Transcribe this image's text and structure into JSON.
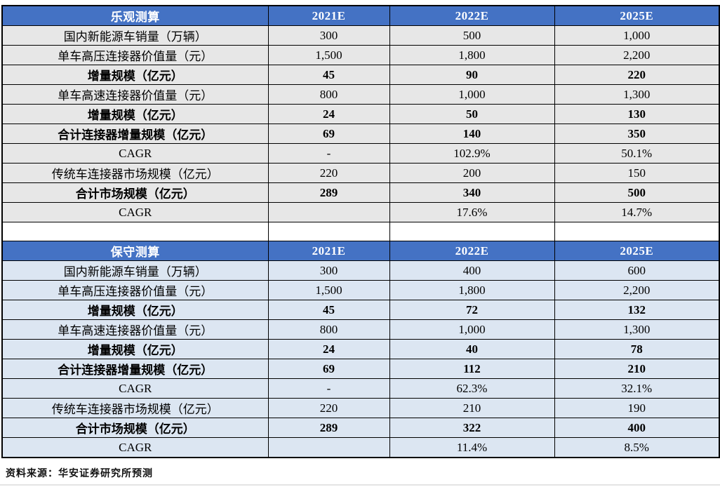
{
  "colors": {
    "header_bg": "#4472C4",
    "header_text": "#ffffff",
    "optimistic_row_bg": "#E7E7E7",
    "conservative_row_bg": "#DCE6F2",
    "border": "#000000"
  },
  "tables": [
    {
      "title": "乐观测算",
      "columns": [
        "2021E",
        "2022E",
        "2025E"
      ],
      "row_bg": "#E7E7E7",
      "rows": [
        {
          "label": "国内新能源车销量（万辆）",
          "values": [
            "300",
            "500",
            "1,000"
          ],
          "bold": false
        },
        {
          "label": "单车高压连接器价值量（元）",
          "values": [
            "1,500",
            "1,800",
            "2,200"
          ],
          "bold": false
        },
        {
          "label": "增量规模（亿元）",
          "values": [
            "45",
            "90",
            "220"
          ],
          "bold": true
        },
        {
          "label": "单车高速连接器价值量（元）",
          "values": [
            "800",
            "1,000",
            "1,300"
          ],
          "bold": false
        },
        {
          "label": "增量规模（亿元）",
          "values": [
            "24",
            "50",
            "130"
          ],
          "bold": true
        },
        {
          "label": "合计连接器增量规模（亿元）",
          "values": [
            "69",
            "140",
            "350"
          ],
          "bold": true
        },
        {
          "label": "CAGR",
          "values": [
            "-",
            "102.9%",
            "50.1%"
          ],
          "bold": false
        },
        {
          "label": "传统车连接器市场规模（亿元）",
          "values": [
            "220",
            "200",
            "150"
          ],
          "bold": false
        },
        {
          "label": "合计市场规模（亿元）",
          "values": [
            "289",
            "340",
            "500"
          ],
          "bold": true
        },
        {
          "label": "CAGR",
          "values": [
            "",
            "17.6%",
            "14.7%"
          ],
          "bold": false
        }
      ]
    },
    {
      "title": "保守测算",
      "columns": [
        "2021E",
        "2022E",
        "2025E"
      ],
      "row_bg": "#DCE6F2",
      "rows": [
        {
          "label": "国内新能源车销量（万辆）",
          "values": [
            "300",
            "400",
            "600"
          ],
          "bold": false
        },
        {
          "label": "单车高压连接器价值量（元）",
          "values": [
            "1,500",
            "1,800",
            "2,200"
          ],
          "bold": false
        },
        {
          "label": "增量规模（亿元）",
          "values": [
            "45",
            "72",
            "132"
          ],
          "bold": true
        },
        {
          "label": "单车高速连接器价值量（元）",
          "values": [
            "800",
            "1,000",
            "1,300"
          ],
          "bold": false
        },
        {
          "label": "增量规模（亿元）",
          "values": [
            "24",
            "40",
            "78"
          ],
          "bold": true
        },
        {
          "label": "合计连接器增量规模（亿元）",
          "values": [
            "69",
            "112",
            "210"
          ],
          "bold": true
        },
        {
          "label": "CAGR",
          "values": [
            "-",
            "62.3%",
            "32.1%"
          ],
          "bold": false
        },
        {
          "label": "传统车连接器市场规模（亿元）",
          "values": [
            "220",
            "210",
            "190"
          ],
          "bold": false
        },
        {
          "label": "合计市场规模（亿元）",
          "values": [
            "289",
            "322",
            "400"
          ],
          "bold": true
        },
        {
          "label": "CAGR",
          "values": [
            "",
            "11.4%",
            "8.5%"
          ],
          "bold": false
        }
      ]
    }
  ],
  "footer": {
    "source": "资料来源：华安证券研究所预测"
  }
}
